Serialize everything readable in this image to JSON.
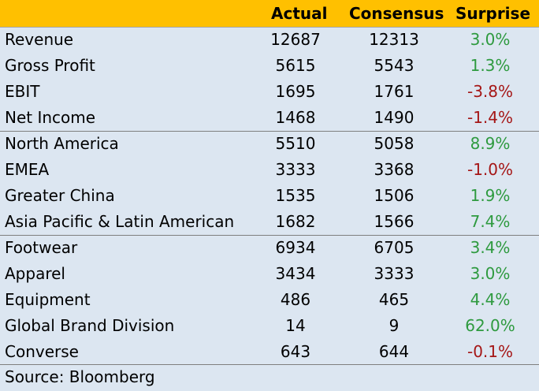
{
  "header": {
    "actual": "Actual",
    "consensus": "Consensus",
    "surprise": "Surprise"
  },
  "rows": [
    {
      "label": "Revenue",
      "actual": "12687",
      "consensus": "12313",
      "surprise": "3.0%",
      "sign": "pos"
    },
    {
      "label": "Gross Profit",
      "actual": "5615",
      "consensus": "5543",
      "surprise": "1.3%",
      "sign": "pos"
    },
    {
      "label": "EBIT",
      "actual": "1695",
      "consensus": "1761",
      "surprise": "-3.8%",
      "sign": "neg"
    },
    {
      "label": "Net Income",
      "actual": "1468",
      "consensus": "1490",
      "surprise": "-1.4%",
      "sign": "neg"
    },
    {
      "label": "North America",
      "actual": "5510",
      "consensus": "5058",
      "surprise": "8.9%",
      "sign": "pos"
    },
    {
      "label": "EMEA",
      "actual": "3333",
      "consensus": "3368",
      "surprise": "-1.0%",
      "sign": "neg"
    },
    {
      "label": "Greater China",
      "actual": "1535",
      "consensus": "1506",
      "surprise": "1.9%",
      "sign": "pos"
    },
    {
      "label": "Asia Pacific & Latin American",
      "actual": "1682",
      "consensus": "1566",
      "surprise": "7.4%",
      "sign": "pos"
    },
    {
      "label": "Footwear",
      "actual": "6934",
      "consensus": "6705",
      "surprise": "3.4%",
      "sign": "pos"
    },
    {
      "label": "Apparel",
      "actual": "3434",
      "consensus": "3333",
      "surprise": "3.0%",
      "sign": "pos"
    },
    {
      "label": "Equipment",
      "actual": "486",
      "consensus": "465",
      "surprise": "4.4%",
      "sign": "pos"
    },
    {
      "label": "Global Brand Division",
      "actual": "14",
      "consensus": "9",
      "surprise": "62.0%",
      "sign": "pos"
    },
    {
      "label": "Converse",
      "actual": "643",
      "consensus": "644",
      "surprise": "-0.1%",
      "sign": "neg"
    }
  ],
  "source": "Source: Bloomberg",
  "colors": {
    "header_bg": "#ffc000",
    "body_bg": "#dce6f1",
    "positive": "#2e9a3f",
    "negative": "#a51616"
  }
}
